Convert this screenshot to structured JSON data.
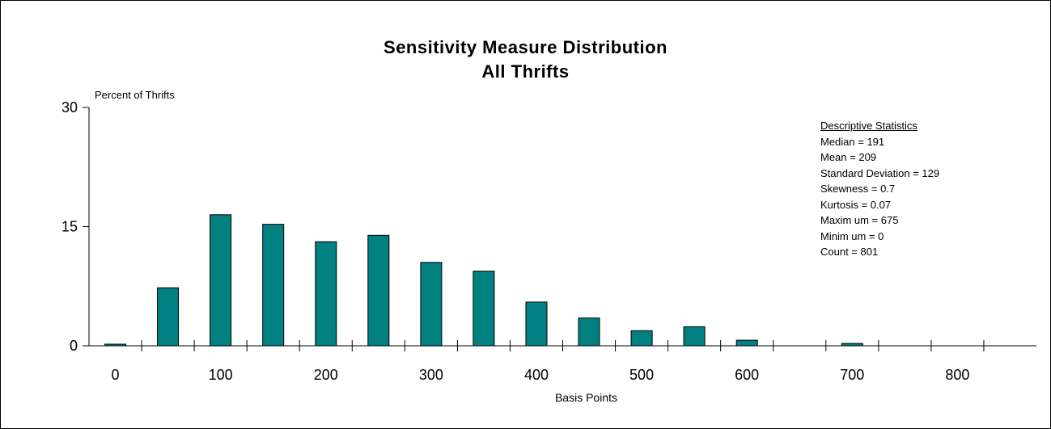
{
  "chart_data": {
    "type": "bar",
    "title": "Sensitivity Measure Distribution",
    "subtitle": "All Thrifts",
    "ylabel": "Percent of Thrifts",
    "xlabel": "Basis Points",
    "ylim": [
      0,
      30
    ],
    "yticks": [
      0,
      15,
      30
    ],
    "xlim": [
      -25,
      875
    ],
    "xticks": [
      0,
      100,
      200,
      300,
      400,
      500,
      600,
      700,
      800
    ],
    "bar_color": "#008080",
    "grid": false,
    "x": [
      0,
      50,
      100,
      150,
      200,
      250,
      300,
      350,
      400,
      450,
      500,
      550,
      600,
      650,
      700,
      750,
      800,
      850
    ],
    "values": [
      0.2,
      7.3,
      16.5,
      15.3,
      13.1,
      13.9,
      10.5,
      9.4,
      5.5,
      3.5,
      1.9,
      2.4,
      0.7,
      0,
      0.3,
      0,
      0,
      0
    ]
  },
  "stats": {
    "header": "Descriptive Statistics",
    "lines": [
      "Median = 191",
      "Mean = 209",
      "Standard Deviation = 129",
      "Skewness = 0.7",
      "Kurtosis = 0.07",
      "Maxim um = 675",
      "Minim um = 0",
      "Count = 801"
    ]
  }
}
